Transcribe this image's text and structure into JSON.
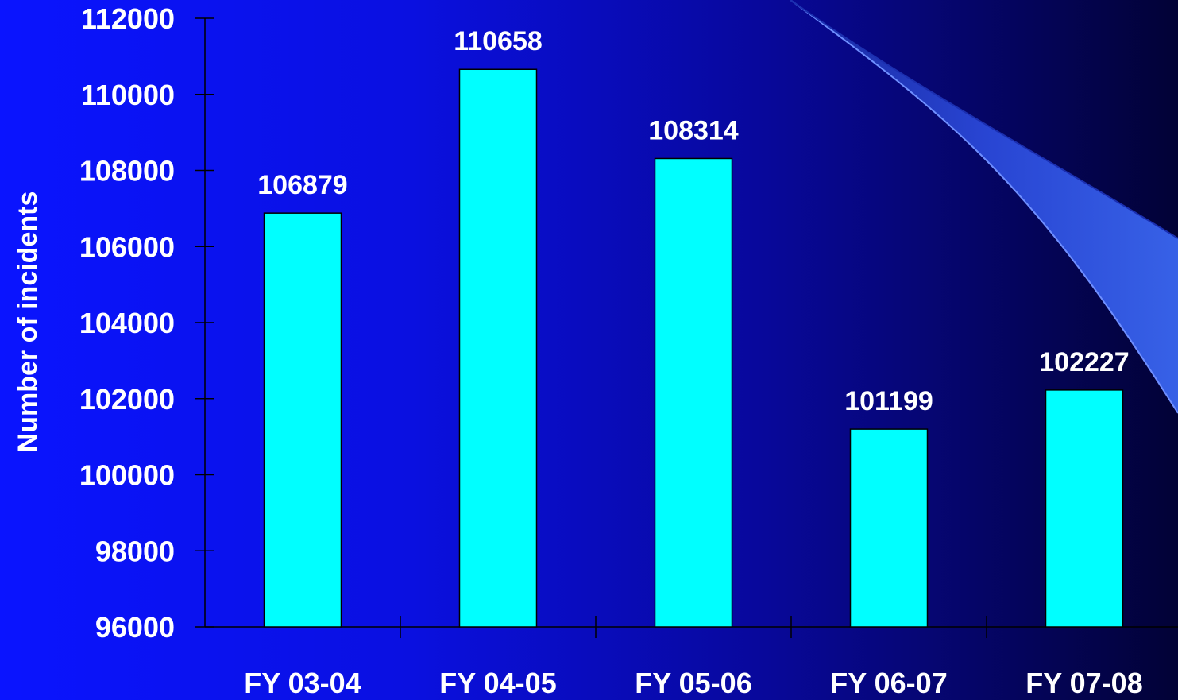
{
  "colors": {
    "bar_fill": "#00ffff",
    "bar_stroke": "#000000",
    "axis": "#000000",
    "text": "#ffffff",
    "swoosh": "#2f57e0"
  },
  "chart_data": {
    "type": "bar",
    "title": "",
    "xlabel": "",
    "ylabel": "Number of incidents",
    "categories": [
      "FY 03-04",
      "FY 04-05",
      "FY 05-06",
      "FY 06-07",
      "FY 07-08"
    ],
    "values": [
      106879,
      110658,
      108314,
      101199,
      102227
    ],
    "ylim": [
      96000,
      112000
    ],
    "yticks": [
      96000,
      98000,
      100000,
      102000,
      104000,
      106000,
      108000,
      110000,
      112000
    ],
    "grid": false,
    "legend": "none"
  }
}
